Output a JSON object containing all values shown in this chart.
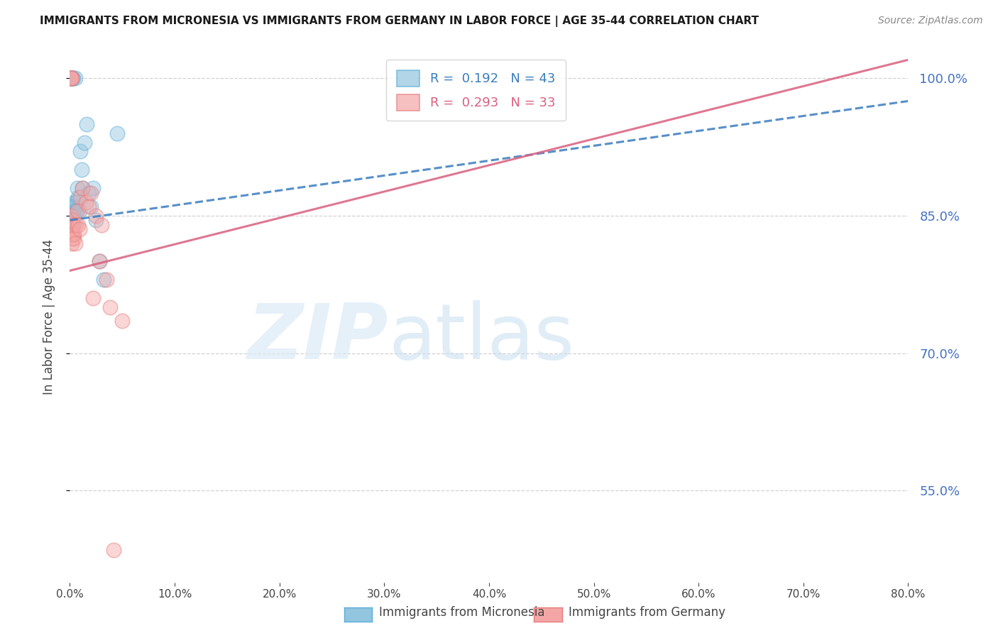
{
  "title": "IMMIGRANTS FROM MICRONESIA VS IMMIGRANTS FROM GERMANY IN LABOR FORCE | AGE 35-44 CORRELATION CHART",
  "source": "Source: ZipAtlas.com",
  "ylabel": "In Labor Force | Age 35-44",
  "xlim": [
    0.0,
    80.0
  ],
  "ylim": [
    45.0,
    103.0
  ],
  "yticks": [
    55.0,
    70.0,
    85.0,
    100.0
  ],
  "xticks": [
    0.0,
    10.0,
    20.0,
    30.0,
    40.0,
    50.0,
    60.0,
    70.0,
    80.0
  ],
  "legend_blue_label": "R =  0.192   N = 43",
  "legend_pink_label": "R =  0.293   N = 33",
  "blue_color": "#92c5de",
  "pink_color": "#f4a6a6",
  "blue_edge_color": "#5aacda",
  "pink_edge_color": "#e87b7b",
  "trend_blue_color": "#3a7cbf",
  "trend_pink_color": "#d95f7f",
  "bottom_legend_blue": "Immigrants from Micronesia",
  "bottom_legend_pink": "Immigrants from Germany",
  "blue_x": [
    0.05,
    0.08,
    0.1,
    0.12,
    0.13,
    0.15,
    0.16,
    0.18,
    0.2,
    0.22,
    0.25,
    0.28,
    0.3,
    0.32,
    0.35,
    0.38,
    0.4,
    0.45,
    0.5,
    0.55,
    0.6,
    0.7,
    0.8,
    0.9,
    1.0,
    1.1,
    1.2,
    1.4,
    1.6,
    1.8,
    2.0,
    2.2,
    2.5,
    2.8,
    3.2,
    0.1,
    0.12,
    0.15,
    0.18,
    0.22,
    0.3,
    0.5,
    4.5
  ],
  "blue_y": [
    85.0,
    85.0,
    84.5,
    85.0,
    86.0,
    85.5,
    84.0,
    85.0,
    85.5,
    85.0,
    84.5,
    85.0,
    85.5,
    86.0,
    84.0,
    86.5,
    85.0,
    85.5,
    86.0,
    86.5,
    85.5,
    88.0,
    87.0,
    85.5,
    92.0,
    90.0,
    88.0,
    93.0,
    95.0,
    87.5,
    86.0,
    88.0,
    84.5,
    80.0,
    78.0,
    100.0,
    100.0,
    100.0,
    100.0,
    100.0,
    100.0,
    100.0,
    94.0
  ],
  "pink_x": [
    0.08,
    0.1,
    0.12,
    0.15,
    0.18,
    0.2,
    0.25,
    0.28,
    0.3,
    0.35,
    0.4,
    0.5,
    0.6,
    0.7,
    0.8,
    0.9,
    1.0,
    1.2,
    1.5,
    1.8,
    2.0,
    2.5,
    3.0,
    0.1,
    0.12,
    0.15,
    0.18,
    2.8,
    3.5,
    2.2,
    3.8,
    5.0,
    4.2
  ],
  "pink_y": [
    84.0,
    83.0,
    85.0,
    82.0,
    84.5,
    83.0,
    82.5,
    83.0,
    84.0,
    82.5,
    83.0,
    82.0,
    84.0,
    85.5,
    84.0,
    83.5,
    87.0,
    88.0,
    86.5,
    86.0,
    87.5,
    85.0,
    84.0,
    100.0,
    100.0,
    100.0,
    100.0,
    80.0,
    78.0,
    76.0,
    75.0,
    73.5,
    48.5
  ],
  "trend_blue_x0": 0.0,
  "trend_blue_y0": 84.5,
  "trend_blue_x1": 80.0,
  "trend_blue_y1": 97.5,
  "trend_pink_x0": 0.0,
  "trend_pink_y0": 79.0,
  "trend_pink_x1": 80.0,
  "trend_pink_y1": 102.0
}
